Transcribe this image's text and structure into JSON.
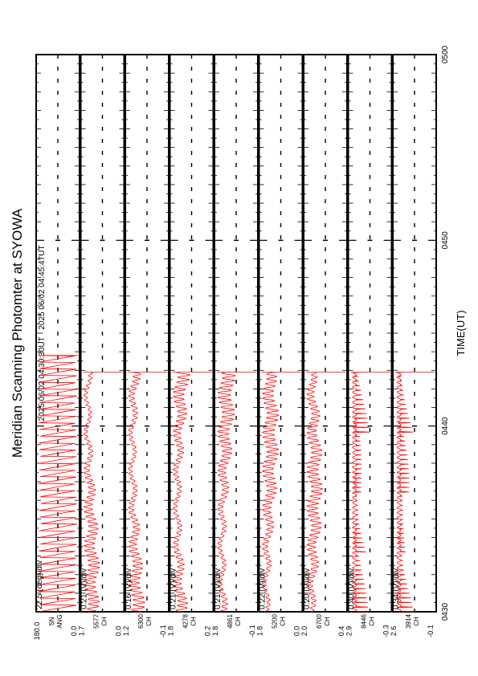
{
  "chart_data": {
    "type": "line",
    "title": "Meridian Scanning Photomter at SYOWA",
    "subtitle": "2025 06/02 04:30:30UT - 2025 06/02 04:45:47UT",
    "xlabel": "TIME(UT)",
    "x_ticks": [
      "0430",
      "0440",
      "0450",
      "0500"
    ],
    "xlim": [
      "0430",
      "0500"
    ],
    "series_color": "#ff0000",
    "panels": [
      {
        "name": "",
        "scale": "22.5 (deg)/div",
        "top": "180.0",
        "bottom": "0.0",
        "axis_labels": [
          "SN",
          "ANG"
        ],
        "wave": "saw",
        "amp": 0.98,
        "end": 0.46
      },
      {
        "name": "",
        "scale": "0.21 (V)/div",
        "top": "1.7",
        "bottom": "0.0",
        "axis_labels": [
          "5577",
          "CH"
        ],
        "wave": "osc",
        "amp": 0.42,
        "end": 0.43
      },
      {
        "name": "",
        "scale": "0.16 (V)/div",
        "top": "1.2",
        "bottom": "-0.1",
        "axis_labels": [
          "6300",
          "CH"
        ],
        "wave": "osc",
        "amp": 0.45,
        "end": 0.43
      },
      {
        "name": "",
        "scale": "0.21 (V)/div",
        "top": "1.8",
        "bottom": "0.2",
        "axis_labels": [
          "4278",
          "CH"
        ],
        "wave": "osc",
        "amp": 0.5,
        "end": 0.43
      },
      {
        "name": "",
        "scale": "0.21 (V)/div",
        "top": "1.8",
        "bottom": "-0.1",
        "axis_labels": [
          "4861",
          "CH"
        ],
        "wave": "osc",
        "amp": 0.48,
        "end": 0.43
      },
      {
        "name": "",
        "scale": "0.22 (V)/div",
        "top": "1.8",
        "bottom": "0.0",
        "axis_labels": [
          "5200",
          "CH"
        ],
        "wave": "osc",
        "amp": 0.45,
        "end": 0.43
      },
      {
        "name": "",
        "scale": "0.20 (V)/div",
        "top": "2.0",
        "bottom": "0.4",
        "axis_labels": [
          "6700",
          "CH"
        ],
        "wave": "osc",
        "amp": 0.42,
        "end": 0.43
      },
      {
        "name": "",
        "scale": "0.40 (V)/div",
        "top": "2.9",
        "bottom": "-0.3",
        "axis_labels": [
          "8446",
          "CH"
        ],
        "wave": "spike",
        "amp": 0.4,
        "end": 0.43
      },
      {
        "name": "",
        "scale": "0.34 (V)/div",
        "top": "2.6",
        "bottom": "-0.1",
        "axis_labels": [
          "3914",
          "CH"
        ],
        "wave": "spike",
        "amp": 0.38,
        "end": 0.43
      }
    ]
  }
}
